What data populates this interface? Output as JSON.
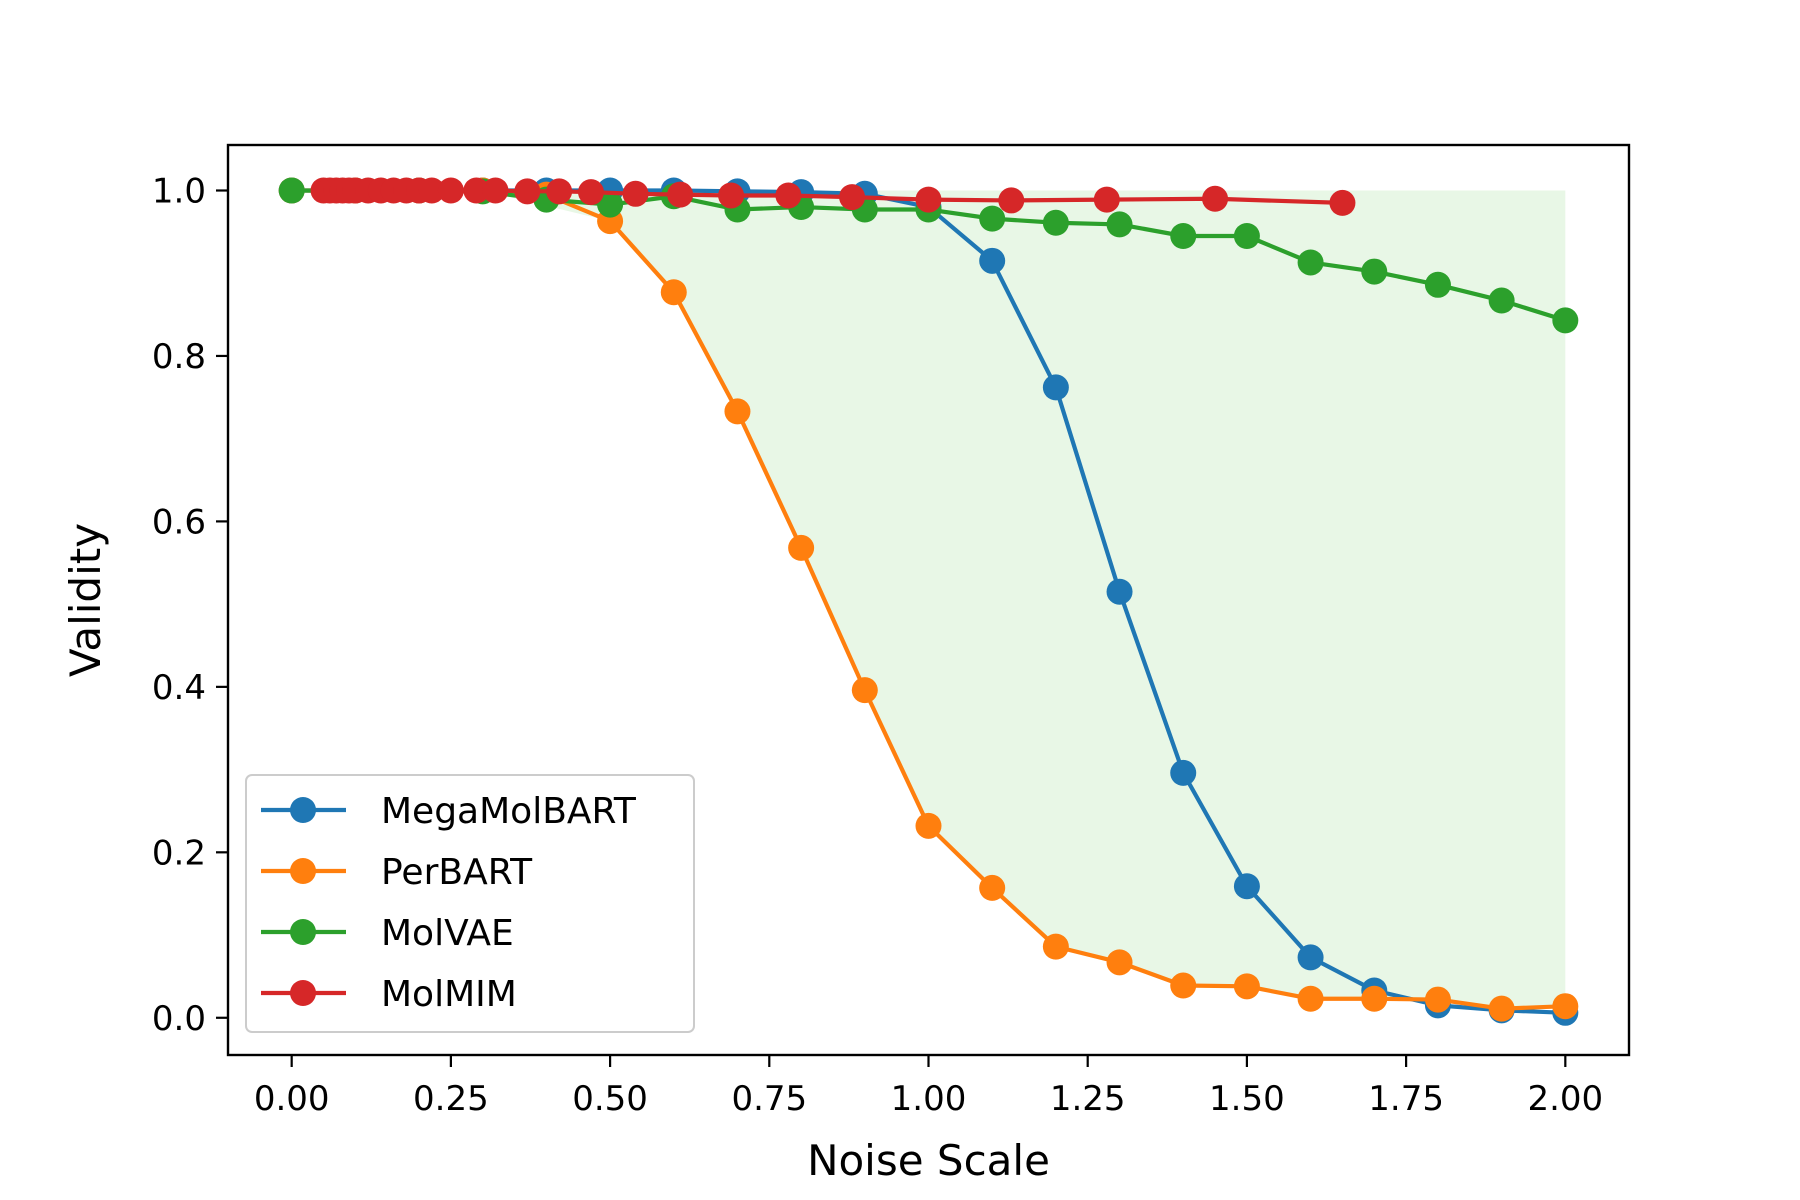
{
  "chart_data": {
    "type": "line",
    "xlabel": "Noise Scale",
    "ylabel": "Validity",
    "xlim": [
      -0.1,
      2.1
    ],
    "ylim": [
      -0.045,
      1.055
    ],
    "xticks": [
      0.0,
      0.25,
      0.5,
      0.75,
      1.0,
      1.25,
      1.5,
      1.75,
      2.0
    ],
    "xtick_labels": [
      "0.00",
      "0.25",
      "0.50",
      "0.75",
      "1.00",
      "1.25",
      "1.50",
      "1.75",
      "2.00"
    ],
    "yticks": [
      0.0,
      0.2,
      0.4,
      0.6,
      0.8,
      1.0
    ],
    "ytick_labels": [
      "0.0",
      "0.2",
      "0.4",
      "0.6",
      "0.8",
      "1.0"
    ],
    "grid": false,
    "legend_position": "lower-left",
    "shaded_region": {
      "color": "#e8f7e6",
      "x": [
        0.3,
        0.5,
        0.6,
        0.7,
        0.8,
        0.9,
        1.0,
        1.1,
        1.2,
        1.3,
        1.4,
        1.5,
        1.6,
        1.7,
        1.8,
        1.9,
        2.0
      ],
      "lower": [
        1.0,
        0.963,
        0.877,
        0.733,
        0.568,
        0.396,
        0.232,
        0.157,
        0.086,
        0.067,
        0.039,
        0.038,
        0.023,
        0.023,
        0.022,
        0.011,
        0.014
      ],
      "upper": [
        1.0,
        1.0,
        1.0,
        1.0,
        1.0,
        1.0,
        1.0,
        1.0,
        1.0,
        1.0,
        1.0,
        1.0,
        1.0,
        1.0,
        1.0,
        1.0,
        1.0
      ]
    },
    "series": [
      {
        "name": "MegaMolBART",
        "color": "#1f77b4",
        "x": [
          0.0,
          0.1,
          0.2,
          0.3,
          0.4,
          0.5,
          0.6,
          0.7,
          0.8,
          0.9,
          1.0,
          1.1,
          1.2,
          1.3,
          1.4,
          1.5,
          1.6,
          1.7,
          1.8,
          1.9,
          2.0
        ],
        "y": [
          1.0,
          1.0,
          1.0,
          1.0,
          1.0,
          1.0,
          1.0,
          0.999,
          0.998,
          0.996,
          0.98,
          0.915,
          0.762,
          0.515,
          0.296,
          0.159,
          0.073,
          0.033,
          0.015,
          0.009,
          0.006
        ]
      },
      {
        "name": "PerBART",
        "color": "#ff7f0e",
        "x": [
          0.0,
          0.1,
          0.2,
          0.3,
          0.4,
          0.5,
          0.6,
          0.7,
          0.8,
          0.9,
          1.0,
          1.1,
          1.2,
          1.3,
          1.4,
          1.5,
          1.6,
          1.7,
          1.8,
          1.9,
          2.0
        ],
        "y": [
          1.0,
          1.0,
          1.0,
          1.0,
          0.995,
          0.963,
          0.877,
          0.733,
          0.568,
          0.396,
          0.232,
          0.157,
          0.086,
          0.067,
          0.039,
          0.038,
          0.023,
          0.023,
          0.022,
          0.011,
          0.014
        ]
      },
      {
        "name": "MolVAE",
        "color": "#2ca02c",
        "x": [
          0.0,
          0.3,
          0.4,
          0.5,
          0.6,
          0.7,
          0.8,
          0.9,
          1.0,
          1.1,
          1.2,
          1.3,
          1.4,
          1.5,
          1.6,
          1.7,
          1.8,
          1.9,
          2.0
        ],
        "y": [
          1.0,
          0.999,
          0.989,
          0.983,
          0.993,
          0.977,
          0.98,
          0.977,
          0.977,
          0.966,
          0.961,
          0.959,
          0.945,
          0.945,
          0.913,
          0.902,
          0.886,
          0.867,
          0.843
        ]
      },
      {
        "name": "MolMIM",
        "color": "#d62728",
        "x": [
          0.05,
          0.06,
          0.07,
          0.08,
          0.09,
          0.1,
          0.12,
          0.14,
          0.16,
          0.18,
          0.2,
          0.22,
          0.25,
          0.29,
          0.32,
          0.37,
          0.42,
          0.47,
          0.54,
          0.61,
          0.69,
          0.78,
          0.88,
          1.0,
          1.13,
          1.28,
          1.45,
          1.65
        ],
        "y": [
          1.0,
          1.0,
          1.0,
          1.0,
          1.0,
          1.0,
          1.0,
          1.0,
          1.0,
          1.0,
          1.0,
          1.0,
          1.0,
          1.0,
          1.0,
          0.999,
          0.999,
          0.998,
          0.996,
          0.995,
          0.994,
          0.994,
          0.992,
          0.989,
          0.988,
          0.989,
          0.99,
          0.985
        ]
      }
    ]
  }
}
